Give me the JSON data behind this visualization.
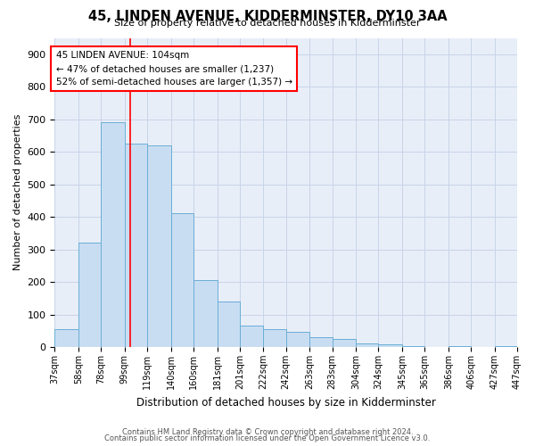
{
  "title": "45, LINDEN AVENUE, KIDDERMINSTER, DY10 3AA",
  "subtitle": "Size of property relative to detached houses in Kidderminster",
  "xlabel": "Distribution of detached houses by size in Kidderminster",
  "ylabel": "Number of detached properties",
  "footer_line1": "Contains HM Land Registry data © Crown copyright and database right 2024.",
  "footer_line2": "Contains public sector information licensed under the Open Government Licence v3.0.",
  "annotation_line1": "45 LINDEN AVENUE: 104sqm",
  "annotation_line2": "← 47% of detached houses are smaller (1,237)",
  "annotation_line3": "52% of semi-detached houses are larger (1,357) →",
  "bar_color": "#c9ddf2",
  "bar_edge_color": "#6aaed6",
  "red_line_x": 104,
  "categories": [
    "37sqm",
    "58sqm",
    "78sqm",
    "99sqm",
    "119sqm",
    "140sqm",
    "160sqm",
    "181sqm",
    "201sqm",
    "222sqm",
    "242sqm",
    "263sqm",
    "283sqm",
    "304sqm",
    "324sqm",
    "345sqm",
    "365sqm",
    "386sqm",
    "406sqm",
    "427sqm",
    "447sqm"
  ],
  "bin_edges": [
    37,
    58,
    78,
    99,
    119,
    140,
    160,
    181,
    201,
    222,
    242,
    263,
    283,
    304,
    324,
    345,
    365,
    386,
    406,
    427,
    447
  ],
  "values": [
    55,
    320,
    690,
    625,
    620,
    410,
    205,
    140,
    65,
    55,
    48,
    30,
    25,
    12,
    8,
    3,
    0,
    3,
    0,
    3
  ],
  "ylim": [
    0,
    950
  ],
  "yticks": [
    0,
    100,
    200,
    300,
    400,
    500,
    600,
    700,
    800,
    900
  ],
  "grid_color": "#c8d4e8",
  "background_color": "#e8eef8"
}
